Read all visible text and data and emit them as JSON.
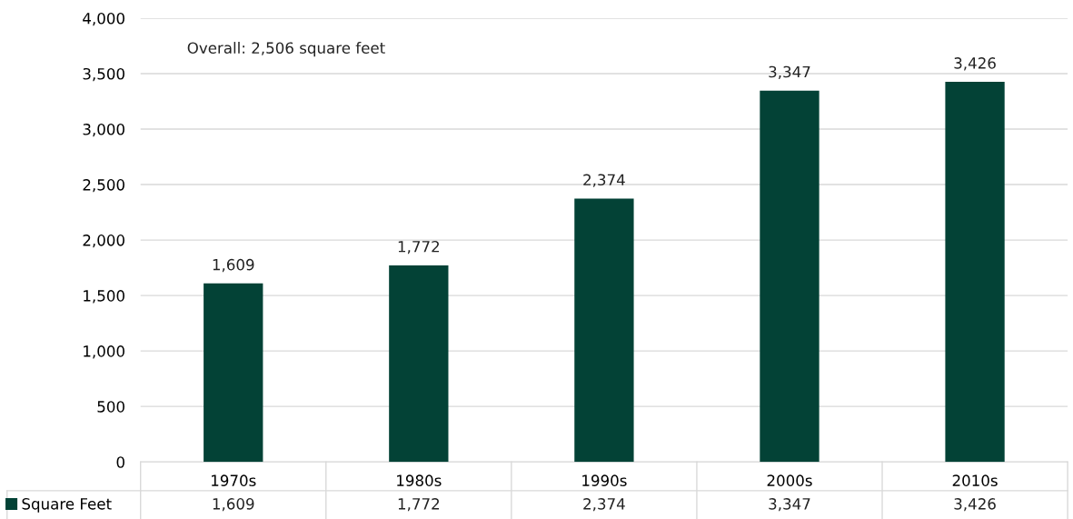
{
  "chart_data": {
    "type": "bar",
    "categories": [
      "1970s",
      "1980s",
      "1990s",
      "2000s",
      "2010s"
    ],
    "series": [
      {
        "name": "Square Feet",
        "color": "#034236",
        "values": [
          1609,
          1772,
          2374,
          3347,
          3426
        ],
        "value_labels": [
          "1,609",
          "1,772",
          "2,374",
          "3,347",
          "3,426"
        ]
      }
    ],
    "ylim": [
      0,
      4000
    ],
    "yticks": [
      {
        "value": 0,
        "label": "0"
      },
      {
        "value": 500,
        "label": "500"
      },
      {
        "value": 1000,
        "label": "1,000"
      },
      {
        "value": 1500,
        "label": "1,500"
      },
      {
        "value": 2000,
        "label": "2,000"
      },
      {
        "value": 2500,
        "label": "2,500"
      },
      {
        "value": 3000,
        "label": "3,000"
      },
      {
        "value": 3500,
        "label": "3,500"
      },
      {
        "value": 4000,
        "label": "4,000"
      }
    ],
    "grid": "y",
    "legend": "bottom left",
    "annotations": [
      "Overall: 2,506 square feet"
    ]
  }
}
